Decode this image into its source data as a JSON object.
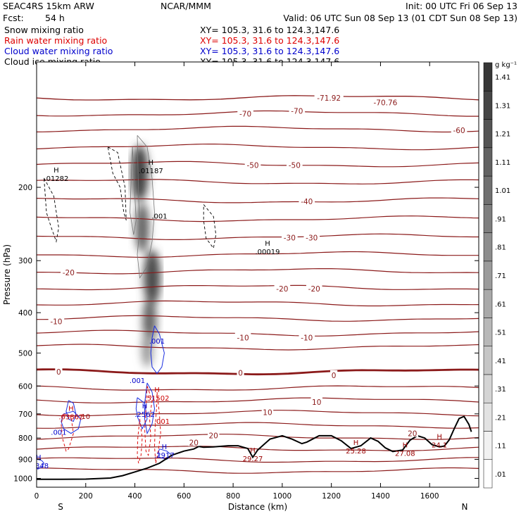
{
  "header": {
    "model": "SEAC4RS 15km ARW",
    "org": "NCAR/MMM",
    "init": "Init: 00 UTC Fri 06 Sep 13",
    "fcst_label": "Fcst:",
    "fcst_value": "54 h",
    "valid": "Valid: 06 UTC Sun 08 Sep 13 (01 CDT Sun 08 Sep 13)",
    "fields": [
      {
        "label": "Snow mixing ratio",
        "xy": "XY= 105.3, 31.6 to 124.3,147.6",
        "color": "#000000"
      },
      {
        "label": "Rain water mixing ratio",
        "xy": "XY= 105.3, 31.6 to 124.3,147.6",
        "color": "#dd0000"
      },
      {
        "label": "Cloud water mixing ratio",
        "xy": "XY= 105.3, 31.6 to 124.3,147.6",
        "color": "#0000cc"
      },
      {
        "label": "Cloud ice mixing ratio",
        "xy": "XY= 105.3, 31.6 to 124.3,147.6",
        "color": "#000000"
      }
    ]
  },
  "chart_data": {
    "type": "cross-section",
    "xlabel": "Distance (km)",
    "ylabel": "Pressure (hPa)",
    "xlim": [
      0,
      1800
    ],
    "ylim": [
      1050,
      100
    ],
    "yscale": "log",
    "x_ticks": [
      0,
      200,
      400,
      600,
      800,
      1000,
      1200,
      1400,
      1600
    ],
    "y_ticks": [
      200,
      300,
      400,
      500,
      600,
      700,
      800,
      900,
      1000
    ],
    "x_end_labels": {
      "left": "S",
      "right": "N"
    },
    "colorbar": {
      "unit": "g kg⁻¹",
      "levels": [
        0.01,
        0.11,
        0.21,
        0.31,
        0.41,
        0.51,
        0.61,
        0.71,
        0.81,
        0.91,
        1.01,
        1.11,
        1.21,
        1.31,
        1.41
      ],
      "labels": [
        ".01",
        ".11",
        ".21",
        ".31",
        ".41",
        ".51",
        ".61",
        ".71",
        ".81",
        ".91",
        "1.01",
        "1.11",
        "1.21",
        "1.31",
        "1.41"
      ]
    },
    "temperature_contours": [
      {
        "p": 122,
        "t": -80,
        "w": 1.3
      },
      {
        "p": 133,
        "t": -70,
        "w": 1.2
      },
      {
        "p": 145,
        "t": -60,
        "w": 1.2
      },
      {
        "p": 160,
        "t": -55,
        "w": 1.2
      },
      {
        "p": 176,
        "t": -50,
        "w": 1.2
      },
      {
        "p": 194,
        "t": -45,
        "w": 1.2
      },
      {
        "p": 215,
        "t": -40,
        "w": 1.2
      },
      {
        "p": 238,
        "t": -35,
        "w": 1.2
      },
      {
        "p": 263,
        "t": -30,
        "w": 1.2
      },
      {
        "p": 290,
        "t": -25,
        "w": 1.2
      },
      {
        "p": 318,
        "t": -20,
        "w": 1.2
      },
      {
        "p": 348,
        "t": -15,
        "w": 1.2
      },
      {
        "p": 380,
        "t": -10,
        "w": 1.2
      },
      {
        "p": 413,
        "t": -5,
        "w": 1.2
      },
      {
        "p": 448,
        "t": 0,
        "w": 1.2
      },
      {
        "p": 484,
        "t": 5,
        "w": 1.2
      },
      {
        "p": 555,
        "t": 0,
        "w": 2.8
      },
      {
        "p": 607,
        "t": 5,
        "w": 1.2
      },
      {
        "p": 650,
        "t": 10,
        "w": 1.2
      },
      {
        "p": 697,
        "t": 10,
        "w": 1.2
      },
      {
        "p": 746,
        "t": 15,
        "w": 1.2
      },
      {
        "p": 795,
        "t": 20,
        "w": 1.2
      },
      {
        "p": 848,
        "t": 25,
        "w": 1.2
      },
      {
        "p": 903,
        "t": 25,
        "w": 1.2
      },
      {
        "p": 958,
        "t": 25,
        "w": 1.2
      }
    ],
    "contour_labels": [
      {
        "x": 1420,
        "p": 125,
        "text": "-70.76"
      },
      {
        "x": 1190,
        "p": 122,
        "text": "-71.92"
      },
      {
        "x": 1060,
        "p": 131,
        "text": "-70"
      },
      {
        "x": 850,
        "p": 133,
        "text": "-70"
      },
      {
        "x": 1720,
        "p": 146,
        "text": "-60"
      },
      {
        "x": 880,
        "p": 177,
        "text": "-50"
      },
      {
        "x": 1050,
        "p": 177,
        "text": "-50"
      },
      {
        "x": 1100,
        "p": 216,
        "text": "-40"
      },
      {
        "x": 1030,
        "p": 264,
        "text": "-30"
      },
      {
        "x": 1120,
        "p": 264,
        "text": "-30"
      },
      {
        "x": 130,
        "p": 320,
        "text": "-20"
      },
      {
        "x": 1000,
        "p": 350,
        "text": "-20"
      },
      {
        "x": 1130,
        "p": 350,
        "text": "-20"
      },
      {
        "x": 80,
        "p": 420,
        "text": "-10"
      },
      {
        "x": 840,
        "p": 459,
        "text": "-10"
      },
      {
        "x": 1100,
        "p": 459,
        "text": "-10"
      },
      {
        "x": 90,
        "p": 555,
        "text": "0"
      },
      {
        "x": 830,
        "p": 558,
        "text": "0"
      },
      {
        "x": 1210,
        "p": 565,
        "text": "0"
      },
      {
        "x": 940,
        "p": 693,
        "text": "10"
      },
      {
        "x": 1140,
        "p": 655,
        "text": "10"
      },
      {
        "x": 720,
        "p": 789,
        "text": "20"
      },
      {
        "x": 1530,
        "p": 779,
        "text": "20"
      },
      {
        "x": 640,
        "p": 820,
        "text": "20"
      }
    ],
    "terrain": [
      [
        0,
        1005
      ],
      [
        100,
        1005
      ],
      [
        200,
        1004
      ],
      [
        300,
        998
      ],
      [
        350,
        985
      ],
      [
        400,
        965
      ],
      [
        450,
        945
      ],
      [
        500,
        920
      ],
      [
        550,
        880
      ],
      [
        600,
        860
      ],
      [
        640,
        850
      ],
      [
        660,
        838
      ],
      [
        680,
        842
      ],
      [
        720,
        840
      ],
      [
        780,
        835
      ],
      [
        820,
        835
      ],
      [
        860,
        848
      ],
      [
        880,
        890
      ],
      [
        900,
        855
      ],
      [
        950,
        805
      ],
      [
        1000,
        790
      ],
      [
        1040,
        805
      ],
      [
        1080,
        825
      ],
      [
        1100,
        818
      ],
      [
        1150,
        790
      ],
      [
        1200,
        790
      ],
      [
        1240,
        812
      ],
      [
        1280,
        848
      ],
      [
        1320,
        835
      ],
      [
        1360,
        800
      ],
      [
        1390,
        815
      ],
      [
        1420,
        845
      ],
      [
        1450,
        862
      ],
      [
        1490,
        855
      ],
      [
        1520,
        810
      ],
      [
        1550,
        790
      ],
      [
        1580,
        800
      ],
      [
        1610,
        830
      ],
      [
        1640,
        840
      ],
      [
        1660,
        836
      ],
      [
        1680,
        808
      ],
      [
        1700,
        760
      ],
      [
        1720,
        718
      ],
      [
        1740,
        710
      ],
      [
        1760,
        742
      ],
      [
        1770,
        773
      ]
    ],
    "shading": [
      {
        "x": 420,
        "p": 185,
        "rx": 12,
        "ry": 40,
        "v": 0.9
      },
      {
        "x": 430,
        "p": 250,
        "rx": 10,
        "ry": 35,
        "v": 0.7
      },
      {
        "x": 470,
        "p": 330,
        "rx": 12,
        "ry": 40,
        "v": 0.85
      },
      {
        "x": 460,
        "p": 420,
        "rx": 10,
        "ry": 35,
        "v": 0.7
      },
      {
        "x": 450,
        "p": 490,
        "rx": 8,
        "ry": 25,
        "v": 0.4
      }
    ],
    "snow_contours": [
      [
        [
          290,
          160
        ],
        [
          330,
          165
        ],
        [
          360,
          200
        ],
        [
          365,
          240
        ],
        [
          355,
          230
        ],
        [
          340,
          200
        ],
        [
          310,
          185
        ],
        [
          290,
          160
        ]
      ],
      [
        [
          30,
          190
        ],
        [
          70,
          210
        ],
        [
          90,
          250
        ],
        [
          80,
          270
        ],
        [
          60,
          250
        ],
        [
          40,
          230
        ],
        [
          30,
          190
        ]
      ],
      [
        [
          680,
          220
        ],
        [
          720,
          235
        ],
        [
          730,
          260
        ],
        [
          720,
          280
        ],
        [
          690,
          265
        ],
        [
          680,
          240
        ],
        [
          680,
          220
        ]
      ]
    ],
    "ice_contours": [
      [
        [
          410,
          150
        ],
        [
          450,
          160
        ],
        [
          470,
          190
        ],
        [
          480,
          230
        ],
        [
          470,
          270
        ],
        [
          450,
          310
        ],
        [
          420,
          330
        ],
        [
          410,
          290
        ],
        [
          420,
          250
        ],
        [
          415,
          210
        ],
        [
          410,
          150
        ]
      ],
      [
        [
          390,
          160
        ],
        [
          400,
          210
        ],
        [
          405,
          240
        ],
        [
          395,
          260
        ],
        [
          380,
          230
        ],
        [
          385,
          190
        ],
        [
          390,
          160
        ]
      ]
    ],
    "cloud_water": [
      [
        [
          480,
          430
        ],
        [
          500,
          450
        ],
        [
          520,
          500
        ],
        [
          510,
          540
        ],
        [
          490,
          560
        ],
        [
          470,
          540
        ],
        [
          465,
          500
        ],
        [
          470,
          460
        ],
        [
          480,
          430
        ]
      ],
      [
        [
          450,
          590
        ],
        [
          470,
          620
        ],
        [
          480,
          680
        ],
        [
          470,
          740
        ],
        [
          450,
          780
        ],
        [
          440,
          720
        ],
        [
          440,
          660
        ],
        [
          450,
          590
        ]
      ],
      [
        [
          410,
          640
        ],
        [
          440,
          660
        ],
        [
          450,
          720
        ],
        [
          430,
          760
        ],
        [
          410,
          710
        ],
        [
          405,
          680
        ],
        [
          410,
          640
        ]
      ],
      [
        [
          110,
          700
        ],
        [
          150,
          690
        ],
        [
          180,
          720
        ],
        [
          170,
          760
        ],
        [
          140,
          780
        ],
        [
          110,
          760
        ],
        [
          100,
          730
        ],
        [
          110,
          700
        ]
      ],
      [
        [
          130,
          650
        ],
        [
          150,
          660
        ],
        [
          160,
          700
        ],
        [
          150,
          730
        ],
        [
          130,
          720
        ],
        [
          120,
          690
        ],
        [
          130,
          650
        ]
      ],
      [
        [
          500,
          850
        ],
        [
          530,
          860
        ],
        [
          550,
          880
        ],
        [
          530,
          900
        ],
        [
          500,
          890
        ],
        [
          495,
          870
        ],
        [
          500,
          850
        ]
      ],
      [
        [
          0,
          900
        ],
        [
          20,
          905
        ],
        [
          30,
          920
        ],
        [
          20,
          940
        ],
        [
          5,
          950
        ],
        [
          0,
          940
        ],
        [
          0,
          900
        ]
      ]
    ],
    "rain_contours": [
      [
        [
          420,
          720
        ],
        [
          430,
          800
        ],
        [
          425,
          880
        ],
        [
          415,
          920
        ],
        [
          410,
          880
        ],
        [
          412,
          800
        ],
        [
          420,
          720
        ]
      ],
      [
        [
          450,
          600
        ],
        [
          470,
          650
        ],
        [
          460,
          720
        ],
        [
          465,
          800
        ],
        [
          455,
          880
        ],
        [
          445,
          860
        ],
        [
          440,
          760
        ],
        [
          445,
          680
        ],
        [
          450,
          600
        ]
      ],
      [
        [
          490,
          620
        ],
        [
          500,
          700
        ],
        [
          505,
          780
        ],
        [
          495,
          860
        ],
        [
          485,
          920
        ],
        [
          480,
          840
        ],
        [
          482,
          760
        ],
        [
          488,
          680
        ],
        [
          490,
          620
        ]
      ],
      [
        [
          110,
          700
        ],
        [
          140,
          710
        ],
        [
          150,
          780
        ],
        [
          130,
          850
        ],
        [
          120,
          860
        ],
        [
          105,
          800
        ],
        [
          100,
          740
        ],
        [
          110,
          700
        ]
      ]
    ],
    "markers": [
      {
        "x": 465,
        "p": 182,
        "label": ".01187",
        "color": "#000000"
      },
      {
        "x": 80,
        "p": 190,
        "label": ".01282",
        "color": "#000000"
      },
      {
        "x": 940,
        "p": 285,
        "label": ".00019",
        "color": "#000000"
      },
      {
        "x": 490,
        "p": 640,
        "label": ".51502",
        "color": "#cc0000"
      },
      {
        "x": 440,
        "p": 700,
        "label": ".2562",
        "color": "#0000cc"
      },
      {
        "x": 140,
        "p": 710,
        "label": ".03862",
        "color": "#cc0000"
      },
      {
        "x": 520,
        "p": 877,
        "label": ".2917",
        "color": "#0000cc"
      },
      {
        "x": 8,
        "p": 930,
        "label": ".1848",
        "color": "#0000cc"
      },
      {
        "x": 880,
        "p": 895,
        "label": "29.27",
        "color": "#990000"
      },
      {
        "x": 1300,
        "p": 858,
        "label": "25.28",
        "color": "#990000"
      },
      {
        "x": 1500,
        "p": 870,
        "label": "27.08",
        "color": "#990000"
      },
      {
        "x": 1640,
        "p": 830,
        "label": "24.1",
        "color": "#990000"
      }
    ],
    "data_labels": [
      {
        "x": 500,
        "p": 238,
        "text": ".001",
        "color": "#000000"
      },
      {
        "x": 490,
        "p": 475,
        "text": ".001",
        "color": "#0000cc"
      },
      {
        "x": 410,
        "p": 590,
        "text": ".001",
        "color": "#0000cc"
      },
      {
        "x": 510,
        "p": 740,
        "text": ".001",
        "color": "#cc0000"
      },
      {
        "x": 90,
        "p": 785,
        "text": ".001",
        "color": "#0000cc"
      },
      {
        "x": 200,
        "p": 720,
        "text": "10",
        "color": "#990000"
      }
    ]
  }
}
